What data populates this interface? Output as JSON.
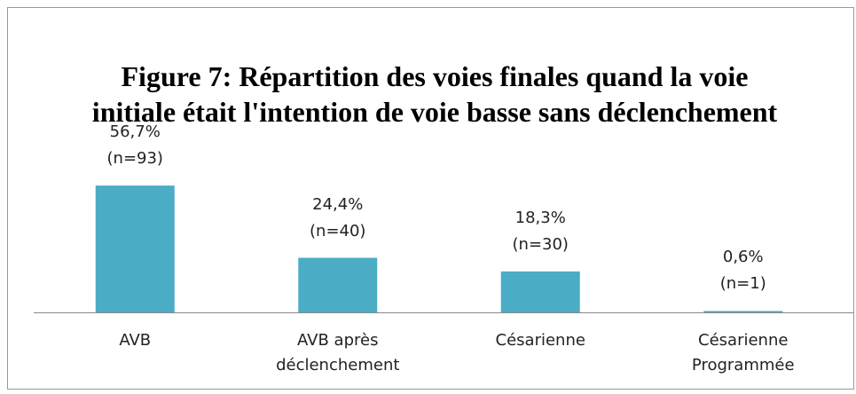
{
  "chart_data": {
    "type": "bar",
    "title": "Figure 7: Répartition des voies finales quand la voie initiale était l'intention de voie basse sans déclenchement",
    "categories": [
      "AVB",
      "AVB après déclenchement",
      "Césarienne",
      "Césarienne Programmée"
    ],
    "values": [
      56.7,
      24.4,
      18.3,
      0.6
    ],
    "value_labels": [
      "56,7%",
      "24,4%",
      "18,3%",
      "0,6%"
    ],
    "n_labels": [
      "(n=93)",
      "(n=40)",
      "(n=30)",
      "(n=1)"
    ],
    "color": "#4bacc6"
  }
}
